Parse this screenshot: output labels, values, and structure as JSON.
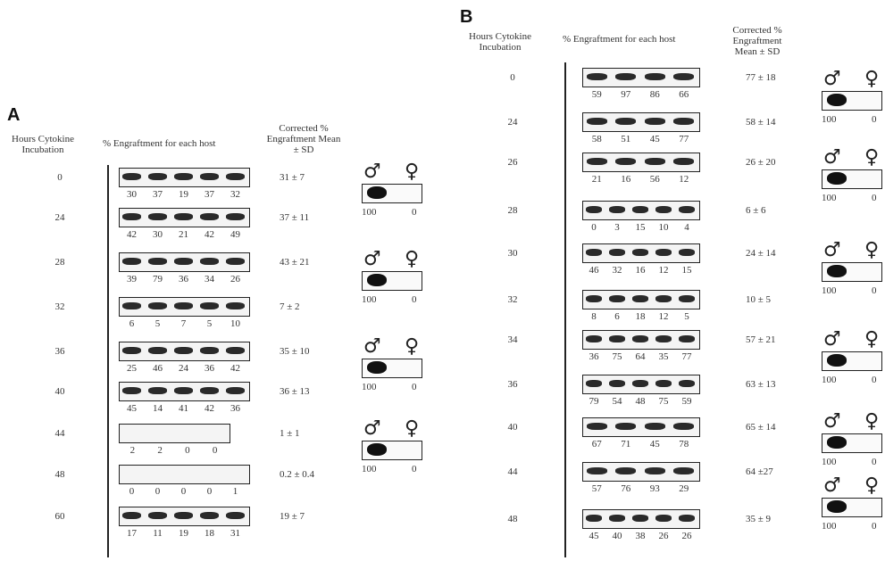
{
  "panels": [
    {
      "label": "A",
      "headers": {
        "hours": "Hours Cytokine Incubation",
        "engraftment": "% Engraftment for each host",
        "corrected": "Corrected % Engraftment Mean ± SD"
      },
      "rows": [
        {
          "hours": "0",
          "values": [
            "30",
            "37",
            "19",
            "37",
            "32"
          ],
          "corrected": "31 ± 7"
        },
        {
          "hours": "24",
          "values": [
            "42",
            "30",
            "21",
            "42",
            "49"
          ],
          "corrected": "37 ± 11"
        },
        {
          "hours": "28",
          "values": [
            "39",
            "79",
            "36",
            "34",
            "26"
          ],
          "corrected": "43 ± 21"
        },
        {
          "hours": "32",
          "values": [
            "6",
            "5",
            "7",
            "5",
            "10"
          ],
          "corrected": "7 ± 2"
        },
        {
          "hours": "36",
          "values": [
            "25",
            "46",
            "24",
            "36",
            "42"
          ],
          "corrected": "35 ± 10"
        },
        {
          "hours": "40",
          "values": [
            "45",
            "14",
            "41",
            "42",
            "36"
          ],
          "corrected": "36 ± 13"
        },
        {
          "hours": "44",
          "values": [
            "2",
            "2",
            "0",
            "0"
          ],
          "corrected": "1 ± 1"
        },
        {
          "hours": "48",
          "values": [
            "0",
            "0",
            "0",
            "0",
            "1"
          ],
          "corrected": "0.2 ± 0.4"
        },
        {
          "hours": "60",
          "values": [
            "17",
            "11",
            "19",
            "18",
            "31"
          ],
          "corrected": "19 ± 7"
        }
      ],
      "insets": [
        {
          "male": "♂",
          "female": "♀",
          "male_value": "100",
          "female_value": "0"
        },
        {
          "male": "♂",
          "female": "♀",
          "male_value": "100",
          "female_value": "0"
        },
        {
          "male": "♂",
          "female": "♀",
          "male_value": "100",
          "female_value": "0"
        },
        {
          "male": "♂",
          "female": "♀",
          "male_value": "100",
          "female_value": "0"
        }
      ]
    },
    {
      "label": "B",
      "headers": {
        "hours": "Hours Cytokine Incubation",
        "engraftment": "% Engraftment for each host",
        "corrected": "Corrected % Engraftment Mean ± SD"
      },
      "rows": [
        {
          "hours": "0",
          "values": [
            "59",
            "97",
            "86",
            "66"
          ],
          "corrected": "77 ± 18"
        },
        {
          "hours": "24",
          "values": [
            "58",
            "51",
            "45",
            "77"
          ],
          "corrected": "58 ± 14"
        },
        {
          "hours": "26",
          "values": [
            "21",
            "16",
            "56",
            "12"
          ],
          "corrected": "26 ± 20"
        },
        {
          "hours": "28",
          "values": [
            "0",
            "3",
            "15",
            "10",
            "4"
          ],
          "corrected": "6 ± 6"
        },
        {
          "hours": "30",
          "values": [
            "46",
            "32",
            "16",
            "12",
            "15"
          ],
          "corrected": "24 ± 14"
        },
        {
          "hours": "32",
          "values": [
            "8",
            "6",
            "18",
            "12",
            "5"
          ],
          "corrected": "10 ± 5"
        },
        {
          "hours": "34",
          "values": [
            "36",
            "75",
            "64",
            "35",
            "77"
          ],
          "corrected": "57 ± 21"
        },
        {
          "hours": "36",
          "values": [
            "79",
            "54",
            "48",
            "75",
            "59"
          ],
          "corrected": "63 ± 13"
        },
        {
          "hours": "40",
          "values": [
            "67",
            "71",
            "45",
            "78"
          ],
          "corrected": "65 ± 14"
        },
        {
          "hours": "44",
          "values": [
            "57",
            "76",
            "93",
            "29"
          ],
          "corrected": "64 ±27"
        },
        {
          "hours": "48",
          "values": [
            "45",
            "40",
            "38",
            "26",
            "26"
          ],
          "corrected": "35 ± 9"
        }
      ],
      "insets": [
        {
          "male": "♂",
          "female": "♀",
          "male_value": "100",
          "female_value": "0"
        },
        {
          "male": "♂",
          "female": "♀",
          "male_value": "100",
          "female_value": "0"
        },
        {
          "male": "♂",
          "female": "♀",
          "male_value": "100",
          "female_value": "0"
        },
        {
          "male": "♂",
          "female": "♀",
          "male_value": "100",
          "female_value": "0"
        },
        {
          "male": "♂",
          "female": "♀",
          "male_value": "100",
          "female_value": "0"
        },
        {
          "male": "♂",
          "female": "♀",
          "male_value": "100",
          "female_value": "0"
        }
      ]
    }
  ]
}
